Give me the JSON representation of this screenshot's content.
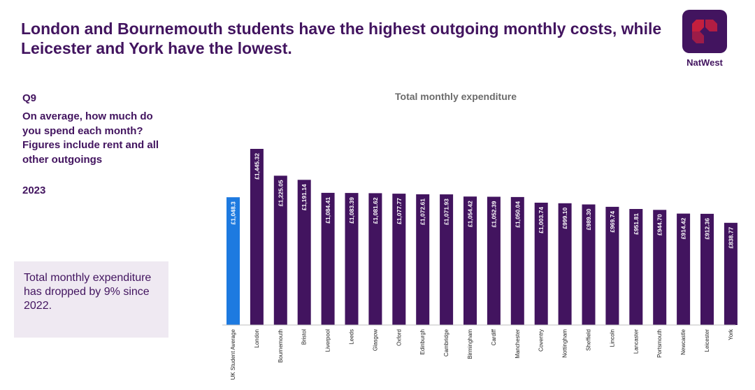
{
  "headline": "London and Bournemouth students have the highest outgoing monthly costs, while Leicester and York have the lowest.",
  "brand": {
    "name": "NatWest",
    "logo_icon": "natwest-cubes-logo",
    "primary_color": "#42145f",
    "logo_accent": "#c41f3e"
  },
  "question": {
    "number": "Q9",
    "text": "On average, how much do you spend each month? Figures include rent and all other outgoings",
    "year": "2023"
  },
  "note": {
    "text": "Total monthly expenditure has dropped by 9% since 2022."
  },
  "chart_data": {
    "type": "bar",
    "title": "Total monthly expenditure",
    "xlabel": "",
    "ylabel": "",
    "ylim": [
      0,
      1500
    ],
    "grid": false,
    "categories": [
      "UK Student Average",
      "London",
      "Bournemouth",
      "Bristol",
      "Liverpool",
      "Leeds",
      "Glasgow",
      "Oxford",
      "Edinburgh",
      "Cambridge",
      "Birmingham",
      "Cardiff",
      "Manchester",
      "Coventry",
      "Nottingham",
      "Sheffield",
      "Lincoln",
      "Lancaster",
      "Portsmouth",
      "Newcastle",
      "Leicester",
      "York"
    ],
    "values": [
      1048.3,
      1445.32,
      1225.05,
      1191.14,
      1084.41,
      1083.39,
      1081.62,
      1077.77,
      1072.61,
      1071.93,
      1054.42,
      1052.39,
      1050.04,
      1003.74,
      999.1,
      989.3,
      969.74,
      951.81,
      944.7,
      914.42,
      912.36,
      838.77
    ],
    "labels": [
      "£1,048.3",
      "£1,445.32",
      "£1,225.05",
      "£1,191.14",
      "£1,084.41",
      "£1,083.39",
      "£1,081.62",
      "£1,077.77",
      "£1,072.61",
      "£1,071.93",
      "£1,054.42",
      "£1,052.39",
      "£1,050.04",
      "£1,003.74",
      "£999.10",
      "£989.30",
      "£969.74",
      "£951.81",
      "£944.70",
      "£914.42",
      "£912.36",
      "£838.77"
    ],
    "colors": {
      "highlight": "#1d7ae0",
      "bar": "#42145f",
      "label": "#ffffff",
      "axis": "#bfbfbf",
      "title": "#6b6b6b"
    },
    "highlight_index": 0
  }
}
